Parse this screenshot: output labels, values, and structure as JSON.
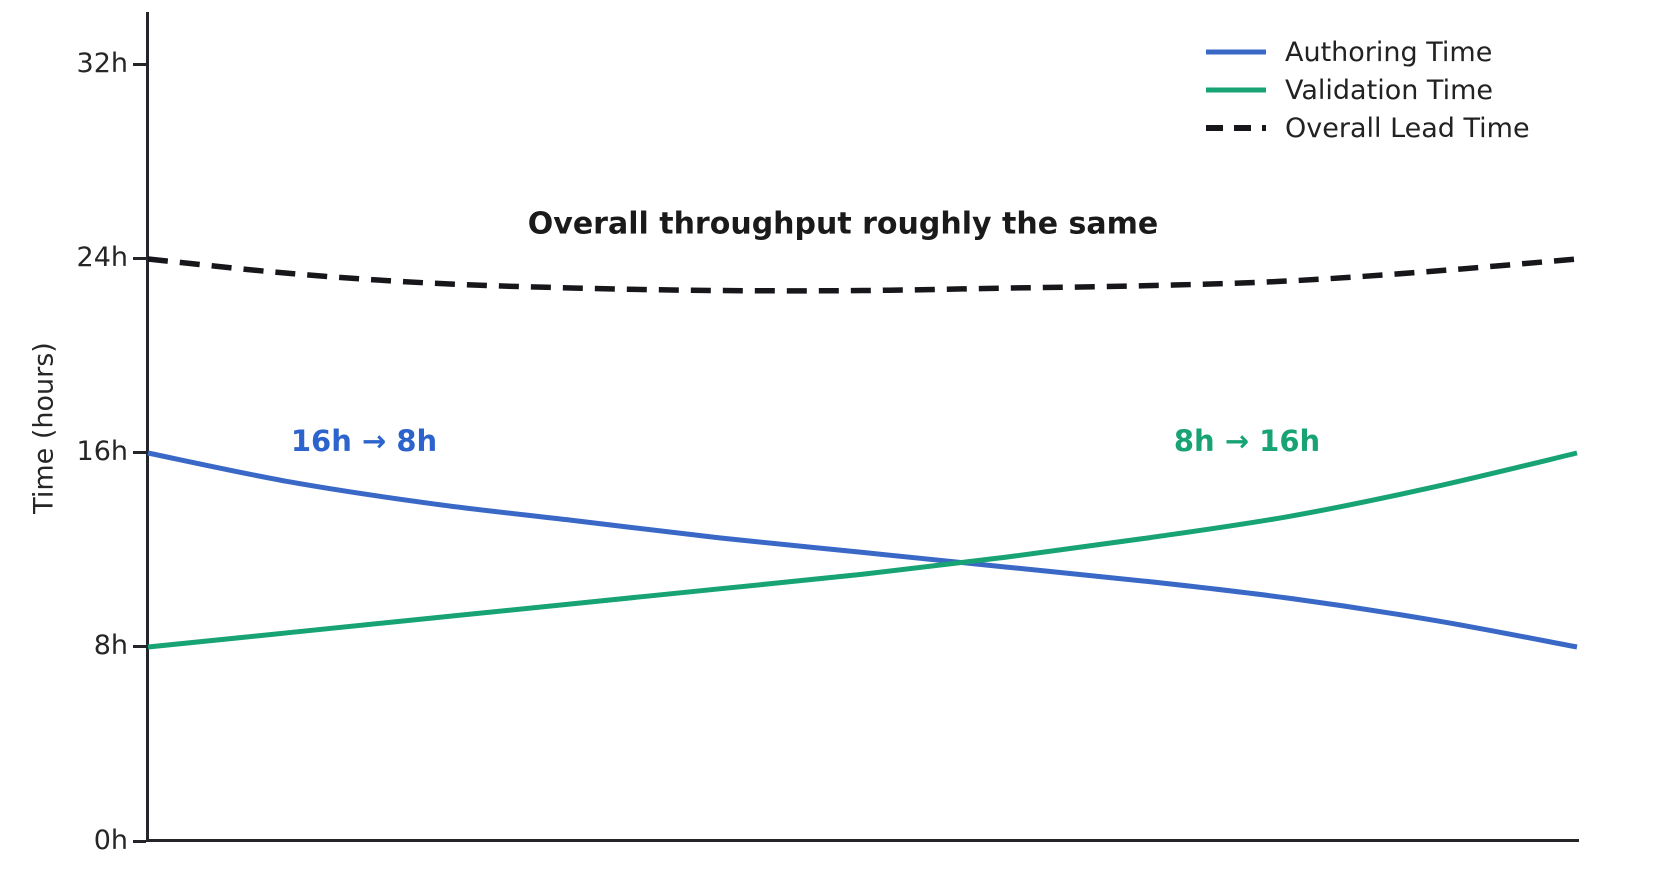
{
  "chart_data": {
    "type": "line",
    "ylabel": "Time (hours)",
    "xlabel": "",
    "grid": false,
    "legend_position": "top-right",
    "ylim": [
      0,
      36
    ],
    "yticks": [
      {
        "label": "0h",
        "value": 0
      },
      {
        "label": "8h",
        "value": 8
      },
      {
        "label": "16h",
        "value": 16
      },
      {
        "label": "24h",
        "value": 24
      },
      {
        "label": "32h",
        "value": 32
      }
    ],
    "x": [
      0,
      0.1,
      0.2,
      0.3,
      0.4,
      0.5,
      0.6,
      0.7,
      0.8,
      0.9,
      1.0
    ],
    "series": [
      {
        "name": "Authoring Time",
        "color": "#3a68c6",
        "dash": null,
        "values": [
          16.0,
          14.8,
          13.9,
          13.2,
          12.5,
          11.9,
          11.3,
          10.7,
          10.0,
          9.1,
          8.0
        ]
      },
      {
        "name": "Validation Time",
        "color": "#17a374",
        "dash": [
          20,
          0
        ],
        "values": [
          8.0,
          8.6,
          9.2,
          9.8,
          10.4,
          11.0,
          11.7,
          12.5,
          13.4,
          14.6,
          16.0
        ]
      },
      {
        "name": "Overall Lead Time",
        "color": "#17171b",
        "dash": [
          20,
          12
        ],
        "values": [
          24.0,
          23.4,
          23.0,
          22.8,
          22.7,
          22.7,
          22.8,
          22.9,
          23.1,
          23.5,
          24.0
        ]
      }
    ],
    "annotations": [
      {
        "text": "16h → 8h",
        "color": "#2c63cd"
      },
      {
        "text": "8h → 16h",
        "color": "#17a374"
      },
      {
        "text": "Overall throughput roughly the same",
        "color": "#1a1a1a"
      }
    ]
  }
}
